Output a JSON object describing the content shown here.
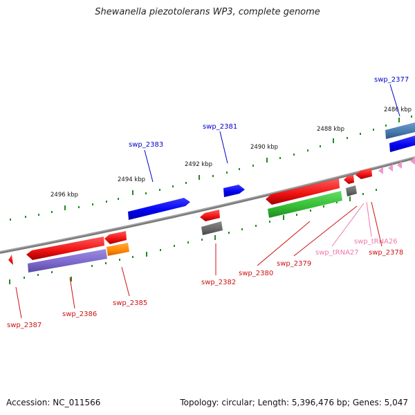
{
  "title": "Shewanella piezotolerans WP3, complete genome",
  "accession": "Accession: NC_011566",
  "summary": "Topology: circular; Length: 5,396,476 bp; Genes: 5,047",
  "colors": {
    "forward_cds": "#0000ee",
    "reverse_cds": "#ee1111",
    "trna": "#ee99cc",
    "backbone": "#888888",
    "tick": "#229922",
    "label_blue": "#0000cc",
    "label_red": "#cc1111",
    "label_pink": "#ee77aa"
  },
  "scale_ticks": [
    "2496 kbp",
    "2494 kbp",
    "2492 kbp",
    "2490 kbp",
    "2488 kbp",
    "2486 kbp"
  ],
  "features": [
    {
      "name": "swp_2377",
      "strand": "forward",
      "color": "blue"
    },
    {
      "name": "swp_2381",
      "strand": "forward",
      "color": "blue"
    },
    {
      "name": "swp_2383",
      "strand": "forward",
      "color": "blue"
    },
    {
      "name": "swp_2378",
      "strand": "reverse",
      "color": "red"
    },
    {
      "name": "swp_tRNA26",
      "strand": "reverse",
      "color": "pink"
    },
    {
      "name": "swp_tRNA27",
      "strand": "reverse",
      "color": "pink"
    },
    {
      "name": "swp_2379",
      "strand": "reverse",
      "color": "red"
    },
    {
      "name": "swp_2380",
      "strand": "reverse",
      "color": "red"
    },
    {
      "name": "swp_2382",
      "strand": "reverse",
      "color": "red"
    },
    {
      "name": "swp_2385",
      "strand": "reverse",
      "color": "red"
    },
    {
      "name": "swp_2386",
      "strand": "reverse",
      "color": "red"
    },
    {
      "name": "swp_2387",
      "strand": "reverse",
      "color": "red"
    }
  ]
}
